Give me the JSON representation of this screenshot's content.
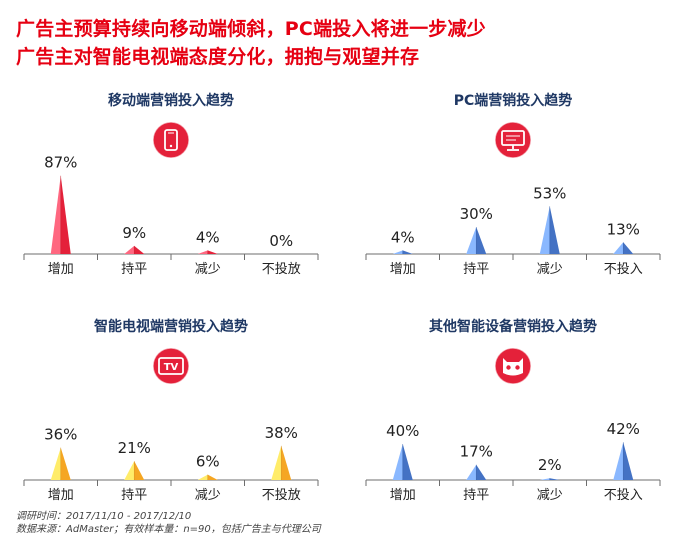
{
  "headline": {
    "line1": "广告主预算持续向移动端倾斜，PC端投入将进一步减少",
    "line2": "广告主对智能电视端态度分化，拥抱与观望并存"
  },
  "footnote": {
    "line1": "调研时间：2017/11/10 - 2017/12/10",
    "line2": "数据来源：AdMaster；有效样本量：n=90，包括广告主与代理公司"
  },
  "colors": {
    "headline": "#e60012",
    "panel_title": "#1f3864",
    "mobile": "#e4213a",
    "pc": "#4472c4",
    "tv": "#f5a623",
    "other": "#4472c4",
    "icon_badge": "#e4213a"
  },
  "chart_data": [
    {
      "id": "mobile",
      "type": "bar",
      "title": "移动端营销投入趋势",
      "icon": "mobile-phone-icon",
      "categories": [
        "增加",
        "持平",
        "减少",
        "不投放"
      ],
      "values": [
        87,
        9,
        4,
        0
      ],
      "labels": [
        "87%",
        "9%",
        "4%",
        "0%"
      ],
      "unit": "%",
      "ylim": [
        0,
        100
      ],
      "grid": false
    },
    {
      "id": "pc",
      "type": "bar",
      "title": "PC端营销投入趋势",
      "icon": "desktop-monitor-icon",
      "categories": [
        "增加",
        "持平",
        "减少",
        "不投入"
      ],
      "values": [
        4,
        30,
        53,
        13
      ],
      "labels": [
        "4%",
        "30%",
        "53%",
        "13%"
      ],
      "unit": "%",
      "ylim": [
        0,
        100
      ],
      "grid": false
    },
    {
      "id": "tv",
      "type": "bar",
      "title": "智能电视端营销投入趋势",
      "icon": "tv-icon",
      "icon_text": "TV",
      "categories": [
        "增加",
        "持平",
        "减少",
        "不投放"
      ],
      "values": [
        36,
        21,
        6,
        38
      ],
      "labels": [
        "36%",
        "21%",
        "6%",
        "38%"
      ],
      "unit": "%",
      "ylim": [
        0,
        100
      ],
      "grid": false
    },
    {
      "id": "other",
      "type": "bar",
      "title": "其他智能设备营销投入趋势",
      "icon": "robot-face-icon",
      "categories": [
        "增加",
        "持平",
        "减少",
        "不投入"
      ],
      "values": [
        40,
        17,
        2,
        42
      ],
      "labels": [
        "40%",
        "17%",
        "2%",
        "42%"
      ],
      "unit": "%",
      "ylim": [
        0,
        100
      ],
      "grid": false
    }
  ]
}
